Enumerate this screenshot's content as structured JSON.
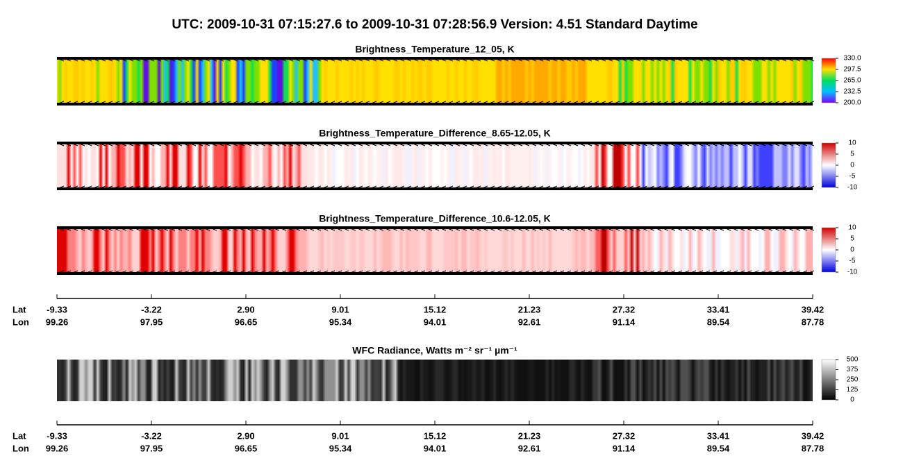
{
  "title": "UTC:  2009-10-31   07:15:27.6  to  2009-10-31   07:28:56.9    Version: 4.51  Standard Daytime",
  "panels": [
    {
      "title": "Brightness_Temperature_12_05, K",
      "colorbar": [
        "330.0",
        "297.5",
        "265.0",
        "232.5",
        "200.0"
      ]
    },
    {
      "title": "Brightness_Temperature_Difference_8.65-12.05, K",
      "colorbar": [
        "10",
        "5",
        "0",
        "-5",
        "-10"
      ]
    },
    {
      "title": "Brightness_Temperature_Difference_10.6-12.05, K",
      "colorbar": [
        "10",
        "5",
        "0",
        "-5",
        "-10"
      ]
    },
    {
      "title": "WFC Radiance, Watts m⁻² sr⁻¹ µm⁻¹",
      "colorbar": [
        "500",
        "375",
        "250",
        "125",
        "0"
      ]
    }
  ],
  "axes": [
    {
      "lat_label": "Lat",
      "lon_label": "Lon",
      "lat": [
        "-9.33",
        "-3.22",
        "2.90",
        "9.01",
        "15.12",
        "21.23",
        "27.32",
        "33.41",
        "39.42"
      ],
      "lon": [
        "99.26",
        "97.95",
        "96.65",
        "95.34",
        "94.01",
        "92.61",
        "91.14",
        "89.54",
        "87.78"
      ]
    },
    {
      "lat_label": "Lat",
      "lon_label": "Lon",
      "lat": [
        "-9.33",
        "-3.22",
        "2.90",
        "9.01",
        "15.12",
        "21.23",
        "27.32",
        "33.41",
        "39.42"
      ],
      "lon": [
        "99.26",
        "97.95",
        "96.65",
        "95.34",
        "94.01",
        "92.61",
        "91.14",
        "89.54",
        "87.78"
      ]
    }
  ]
}
